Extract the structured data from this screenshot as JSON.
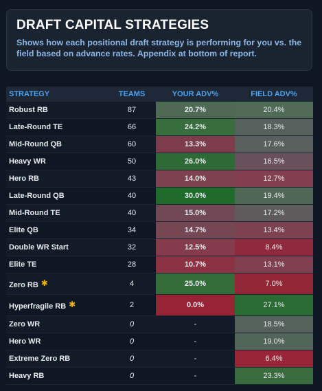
{
  "header": {
    "title": "DRAFT CAPITAL STRATEGIES",
    "subtitle": "Shows how each positional draft strategy is performing for you vs. the field based on advance rates. Appendix at bottom of report."
  },
  "table": {
    "columns": [
      "STRATEGY",
      "TEAMS",
      "YOUR ADV%",
      "FIELD ADV%"
    ],
    "rows": [
      {
        "strategy": "Robust RB",
        "teams": "87",
        "your": "20.7%",
        "field": "20.4%",
        "your_color": "#4e6a54",
        "field_color": "#4f6a55",
        "star": false
      },
      {
        "strategy": "Late-Round TE",
        "teams": "66",
        "your": "24.2%",
        "field": "18.3%",
        "your_color": "#386e3e",
        "field_color": "#56605c",
        "star": false
      },
      {
        "strategy": "Mid-Round QB",
        "teams": "60",
        "your": "13.3%",
        "field": "17.6%",
        "your_color": "#7d3c4c",
        "field_color": "#57605c",
        "star": false
      },
      {
        "strategy": "Heavy WR",
        "teams": "50",
        "your": "26.0%",
        "field": "16.5%",
        "your_color": "#2e6a36",
        "field_color": "#6a505a",
        "star": false
      },
      {
        "strategy": "Hero RB",
        "teams": "43",
        "your": "14.0%",
        "field": "12.7%",
        "your_color": "#7c4250",
        "field_color": "#823f4d",
        "star": false
      },
      {
        "strategy": "Late-Round QB",
        "teams": "40",
        "your": "30.0%",
        "field": "19.4%",
        "your_color": "#1f6b2c",
        "field_color": "#506756",
        "star": false
      },
      {
        "strategy": "Mid-Round TE",
        "teams": "40",
        "your": "15.0%",
        "field": "17.2%",
        "your_color": "#714855",
        "field_color": "#5d5b5b",
        "star": false
      },
      {
        "strategy": "Elite QB",
        "teams": "34",
        "your": "14.7%",
        "field": "13.4%",
        "your_color": "#754654",
        "field_color": "#7c4250",
        "star": false
      },
      {
        "strategy": "Double WR Start",
        "teams": "32",
        "your": "12.5%",
        "field": "8.4%",
        "your_color": "#843b4b",
        "field_color": "#8e2a3c",
        "star": false
      },
      {
        "strategy": "Elite TE",
        "teams": "28",
        "your": "10.7%",
        "field": "13.1%",
        "your_color": "#8b3142",
        "field_color": "#7f3f4e",
        "star": false
      },
      {
        "strategy": "Zero RB",
        "teams": "4",
        "your": "25.0%",
        "field": "7.0%",
        "your_color": "#336d3a",
        "field_color": "#922738",
        "star": true
      },
      {
        "strategy": "Hyperfragile RB",
        "teams": "2",
        "your": "0.0%",
        "field": "27.1%",
        "your_color": "#982334",
        "field_color": "#2a6a33",
        "star": true
      },
      {
        "strategy": "Zero WR",
        "teams": "0",
        "your": "-",
        "field": "18.5%",
        "your_color": "",
        "field_color": "#55625b",
        "star": false
      },
      {
        "strategy": "Hero WR",
        "teams": "0",
        "your": "-",
        "field": "19.0%",
        "your_color": "",
        "field_color": "#516559",
        "star": false
      },
      {
        "strategy": "Extreme Zero RB",
        "teams": "0",
        "your": "-",
        "field": "6.4%",
        "your_color": "",
        "field_color": "#962638",
        "star": false
      },
      {
        "strategy": "Heavy RB",
        "teams": "0",
        "your": "-",
        "field": "23.3%",
        "your_color": "",
        "field_color": "#3a6b3f",
        "star": false
      }
    ]
  },
  "icons": {
    "star": "star-icon"
  },
  "colors": {
    "accent": "#4da3f0",
    "star": "#f0b400",
    "background": "#0f1724"
  }
}
